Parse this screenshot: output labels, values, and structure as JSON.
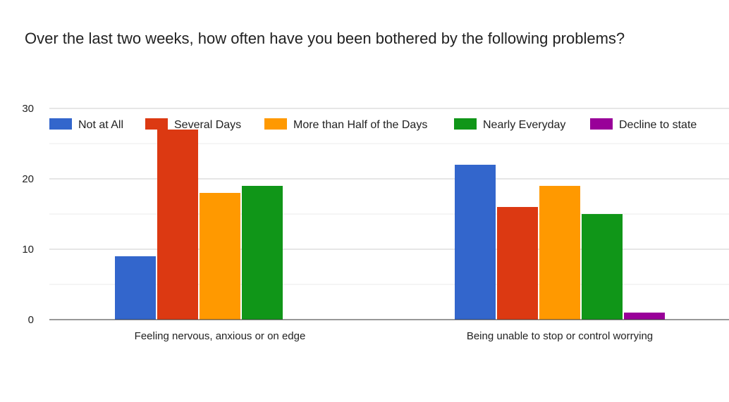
{
  "chart_data": {
    "type": "bar",
    "title": "Over the last two weeks, how often have you been bothered by the following problems?",
    "categories": [
      "Feeling nervous, anxious or on edge",
      "Being unable to stop or control worrying"
    ],
    "series": [
      {
        "name": "Not at All",
        "color": "#3366cc",
        "values": [
          9,
          22
        ]
      },
      {
        "name": "Several Days",
        "color": "#dc3912",
        "values": [
          27,
          16
        ]
      },
      {
        "name": "More than Half of the Days",
        "color": "#ff9900",
        "values": [
          18,
          19
        ]
      },
      {
        "name": "Nearly Everyday",
        "color": "#109618",
        "values": [
          19,
          15
        ]
      },
      {
        "name": "Decline to state",
        "color": "#990099",
        "values": [
          0,
          1
        ]
      }
    ],
    "yticks": [
      0,
      10,
      20,
      30
    ],
    "ylim": [
      0,
      30
    ],
    "grid": true,
    "legend_position": "top"
  }
}
